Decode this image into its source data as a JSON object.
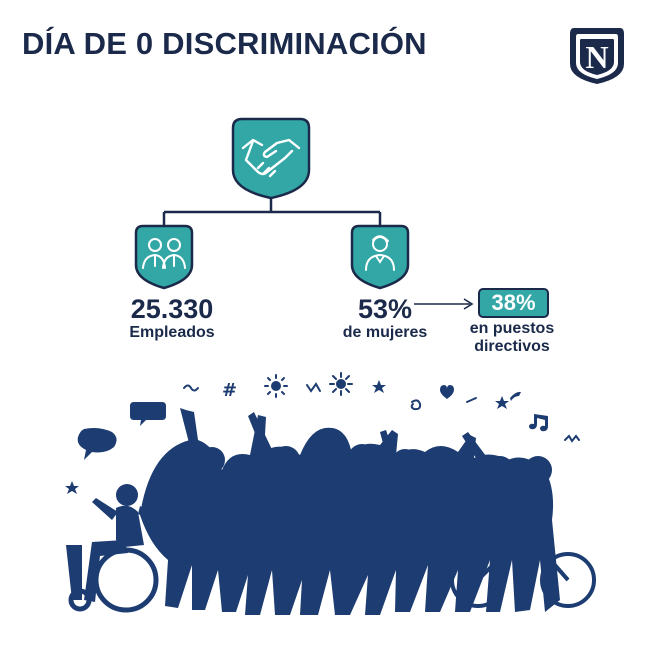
{
  "title": "DÍA DE 0 DISCRIMINACIÓN",
  "logo_letter": "N",
  "stats": {
    "employees_value": "25.330",
    "employees_label": "Empleados",
    "women_value": "53%",
    "women_label": "de mujeres",
    "executives_value": "38%",
    "executives_label_line1": "en puestos",
    "executives_label_line2": "directivos"
  },
  "icons": [
    "handshake-icon",
    "group-people-icon",
    "woman-icon",
    "arrow-right-icon",
    "logo-shield-icon"
  ],
  "colors": {
    "navy": "#1b2a4a",
    "teal": "#33a7a6",
    "crowd_blue": "#1d3c71",
    "background": "#ffffff"
  }
}
